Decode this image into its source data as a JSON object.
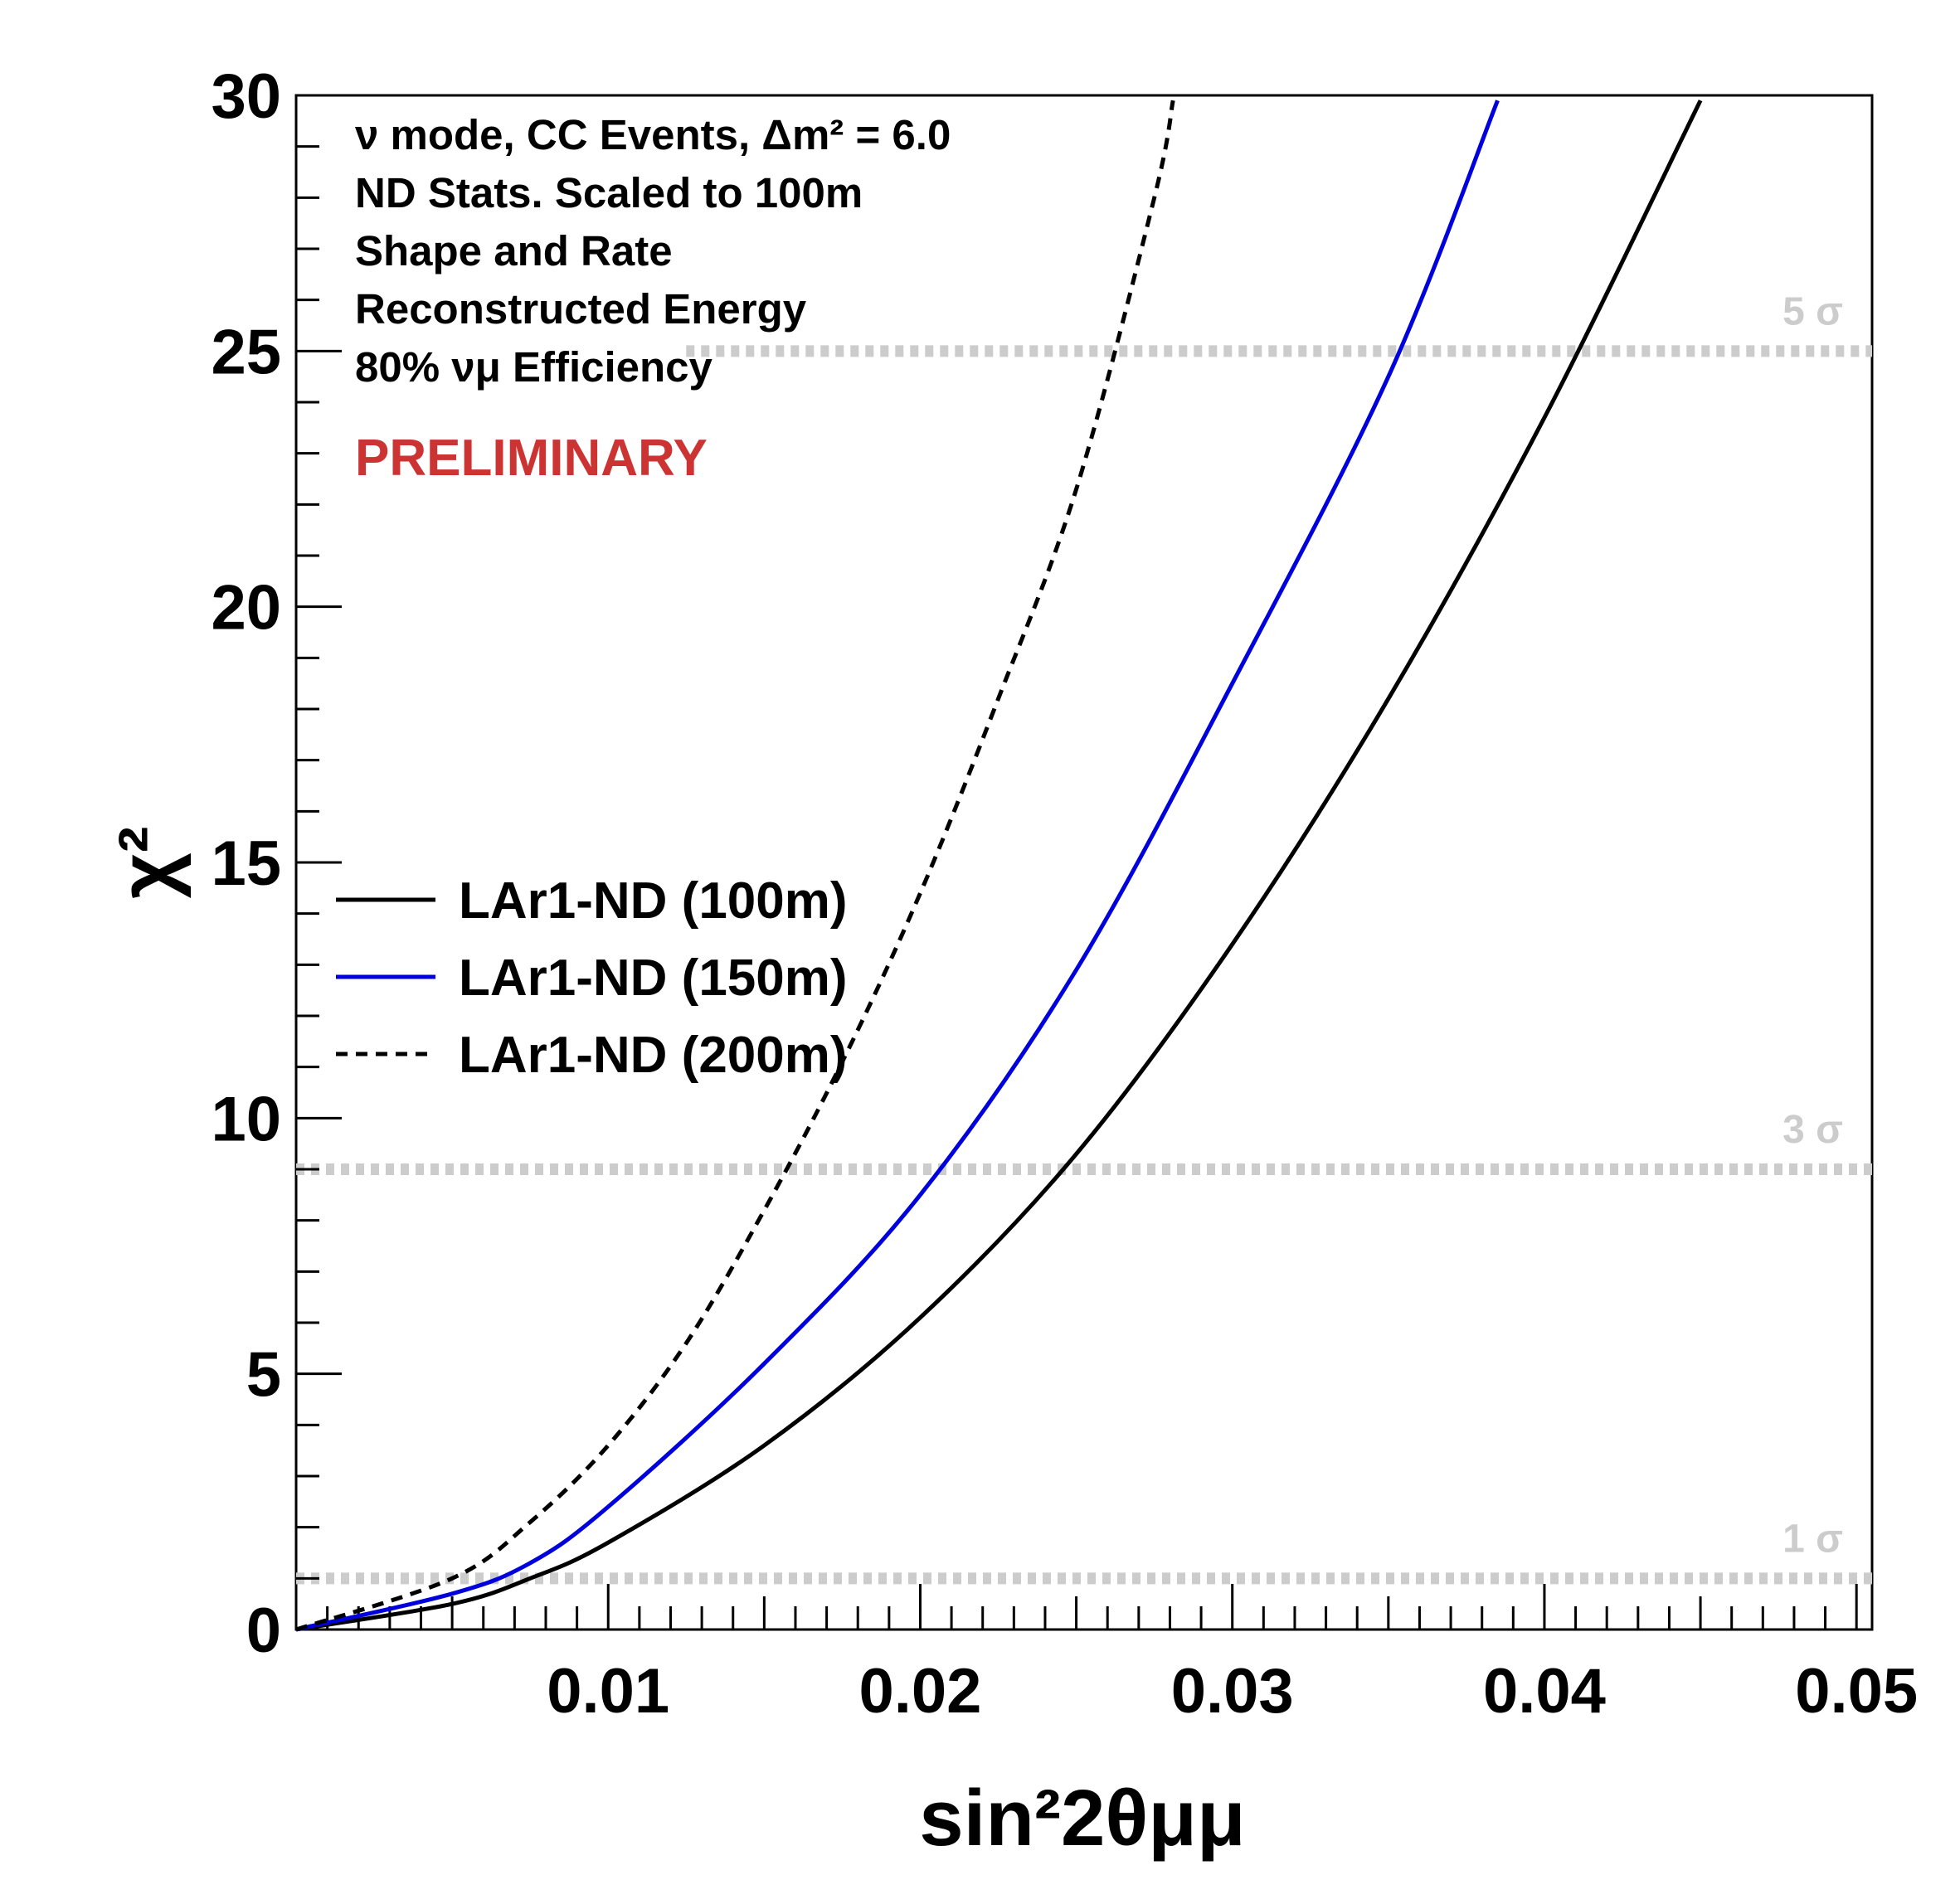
{
  "chart_data": {
    "type": "line",
    "xlabel": "sin²2θμμ",
    "ylabel": "χ²",
    "xlim": [
      0,
      0.0505
    ],
    "ylim": [
      0,
      30
    ],
    "x_ticks": [
      {
        "value": 0.01,
        "label": "0.01"
      },
      {
        "value": 0.02,
        "label": "0.02"
      },
      {
        "value": 0.03,
        "label": "0.03"
      },
      {
        "value": 0.04,
        "label": "0.04"
      },
      {
        "value": 0.05,
        "label": "0.05"
      }
    ],
    "y_ticks": [
      {
        "value": 0,
        "label": "0"
      },
      {
        "value": 5,
        "label": "5"
      },
      {
        "value": 10,
        "label": "10"
      },
      {
        "value": 15,
        "label": "15"
      },
      {
        "value": 20,
        "label": "20"
      },
      {
        "value": 25,
        "label": "25"
      },
      {
        "value": 30,
        "label": "30"
      }
    ],
    "grid": false,
    "legend_position": "middle-left",
    "annotations": [
      "ν mode, CC Events, Δm² =  6.0",
      "ND Stats. Scaled to 100m",
      "Shape and Rate",
      "Reconstructed Energy",
      "80% νμ Efficiency"
    ],
    "watermark": "PRELIMINARY",
    "reference_lines": [
      {
        "y": 1,
        "label": "1 σ",
        "color": "#cccccc"
      },
      {
        "y": 9,
        "label": "3 σ",
        "color": "#cccccc"
      },
      {
        "y": 25,
        "label": "5 σ",
        "color": "#cccccc"
      }
    ],
    "series": [
      {
        "name": "LAr1-ND (100m)",
        "color": "#000000",
        "style": "solid",
        "x": [
          0,
          0.005,
          0.0075,
          0.01,
          0.015,
          0.02,
          0.025,
          0.03,
          0.035,
          0.04,
          0.045
        ],
        "y": [
          0,
          0.5,
          1.0,
          1.7,
          3.6,
          6.1,
          9.3,
          13.4,
          18.2,
          23.7,
          29.9
        ]
      },
      {
        "name": "LAr1-ND (150m)",
        "color": "#0000dd",
        "style": "solid",
        "x": [
          0,
          0.005,
          0.0075,
          0.01,
          0.015,
          0.02,
          0.025,
          0.03,
          0.035,
          0.0385
        ],
        "y": [
          0,
          0.7,
          1.3,
          2.4,
          5.2,
          8.5,
          12.9,
          18.5,
          24.5,
          29.9
        ]
      },
      {
        "name": "LAr1-ND (200m)",
        "color": "#000000",
        "style": "dashed",
        "x": [
          0,
          0.005,
          0.0075,
          0.01,
          0.0125,
          0.015,
          0.0175,
          0.02,
          0.0225,
          0.025,
          0.0275,
          0.0281
        ],
        "y": [
          0,
          1.0,
          2.1,
          3.6,
          5.6,
          8.2,
          11.1,
          14.4,
          18.2,
          22.3,
          28.0,
          29.9
        ]
      }
    ]
  },
  "legend": {
    "entries": [
      "LAr1-ND (100m)",
      "LAr1-ND (150m)",
      "LAr1-ND (200m)"
    ]
  }
}
